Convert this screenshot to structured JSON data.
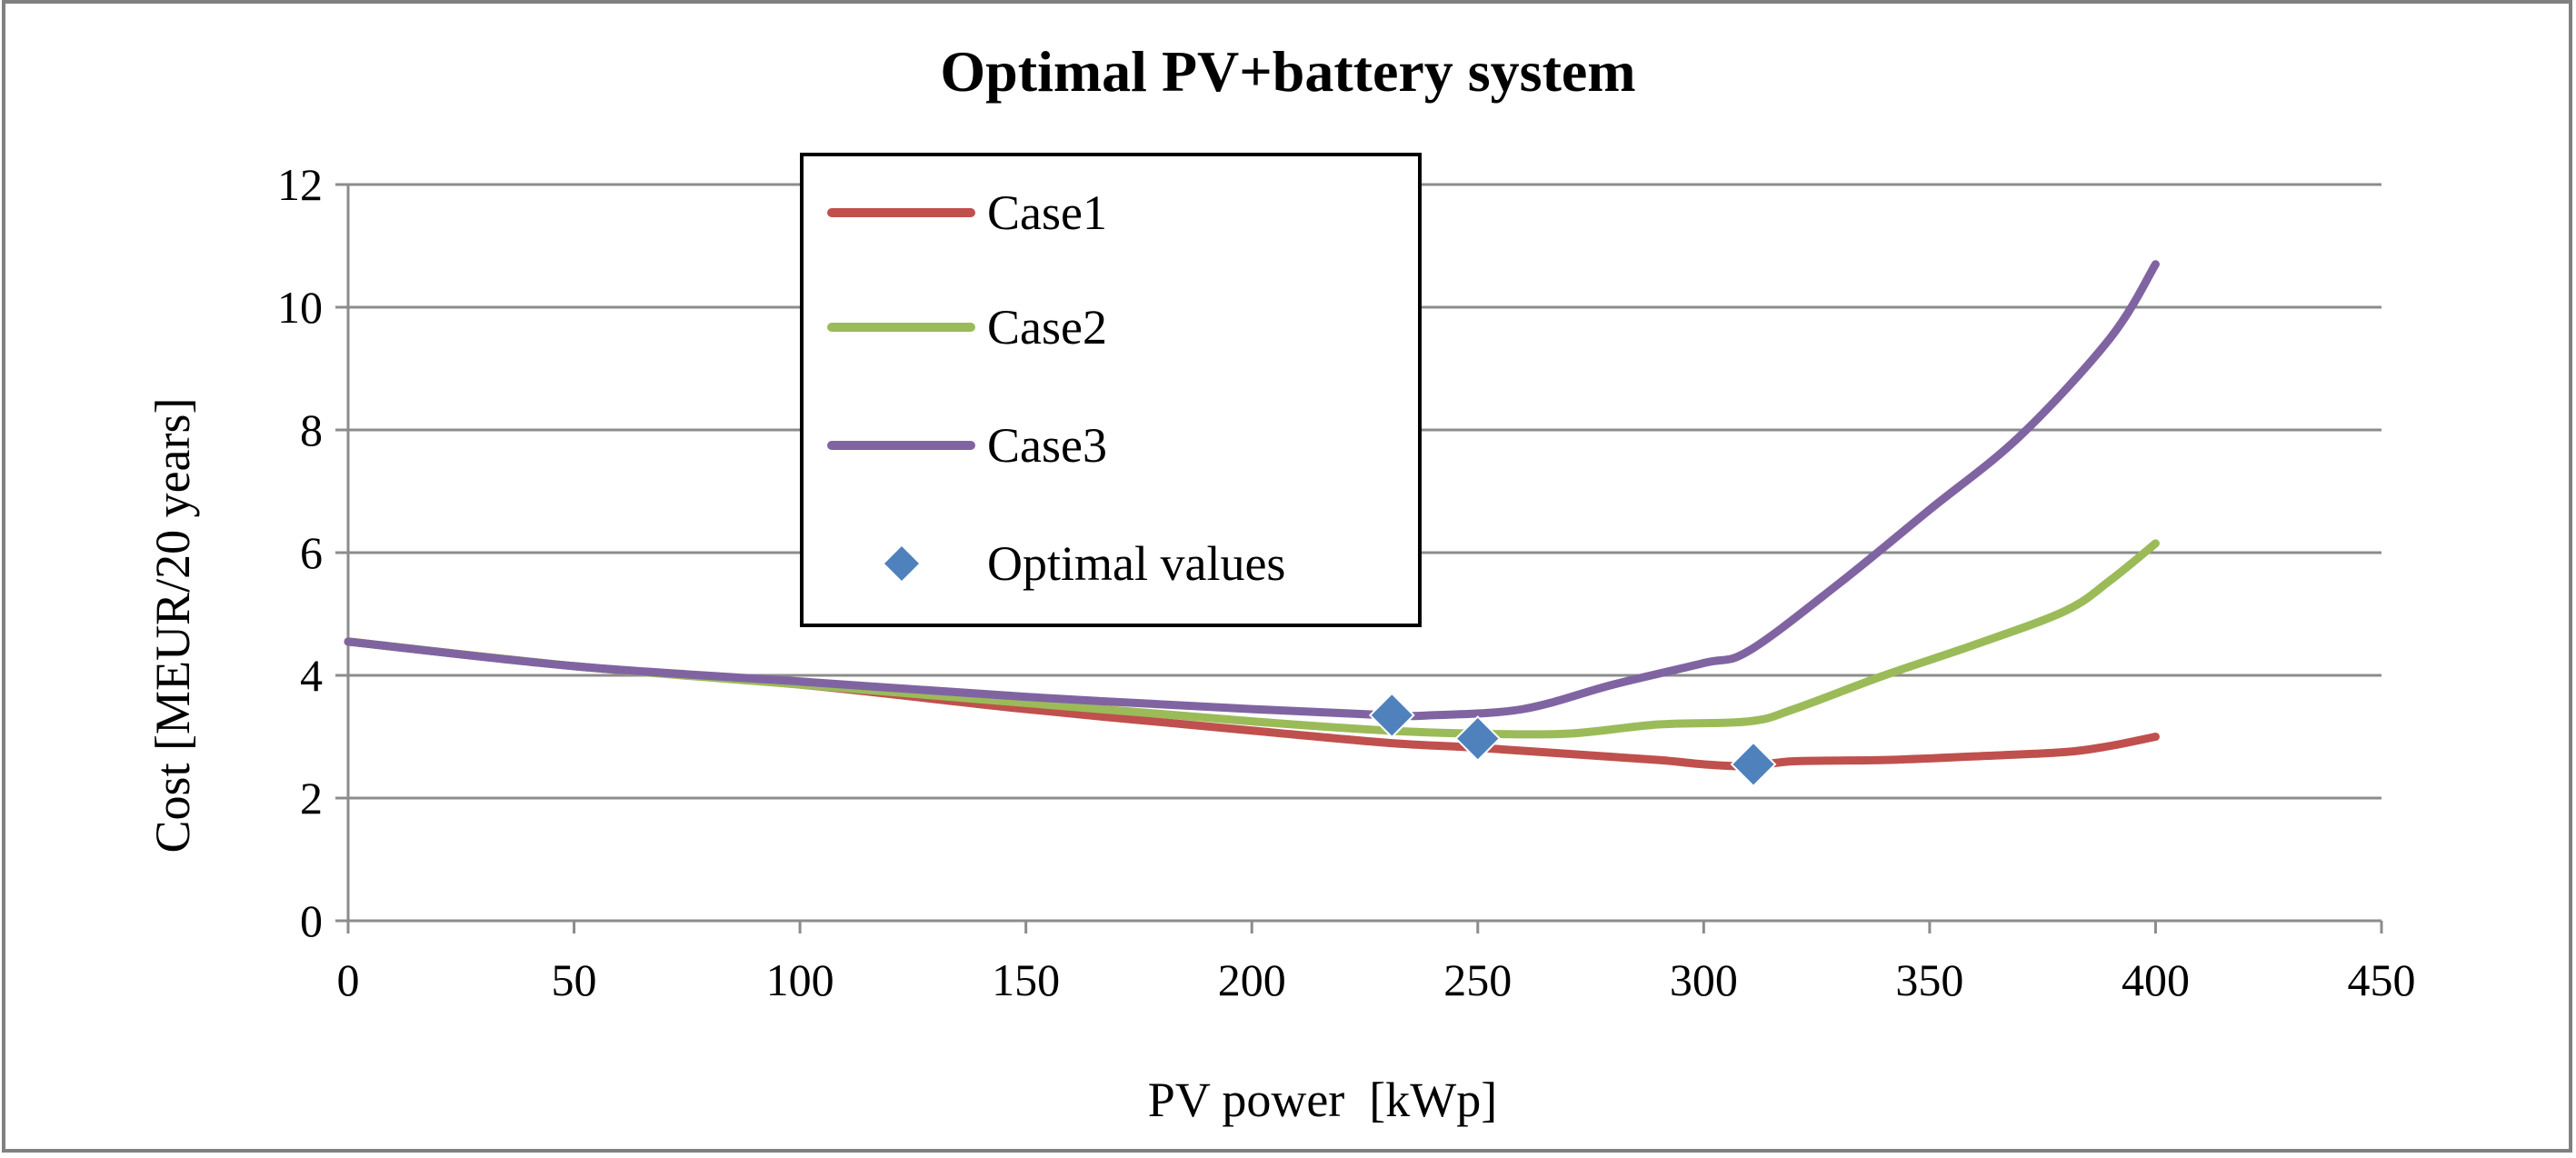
{
  "chart_data": {
    "type": "line",
    "title": "Optimal PV+battery system",
    "xlabel": "PV power  [kWp]",
    "ylabel": "Cost [MEUR/20 years]",
    "xlim": [
      0,
      450
    ],
    "ylim": [
      0,
      12
    ],
    "xticks": [
      0,
      50,
      100,
      150,
      200,
      250,
      300,
      350,
      400,
      450
    ],
    "yticks": [
      0,
      2,
      4,
      6,
      8,
      10,
      12
    ],
    "xtick_labels": [
      "0",
      "50",
      "100",
      "150",
      "200",
      "250",
      "300",
      "350",
      "400",
      "450"
    ],
    "ytick_labels": [
      "0",
      "2",
      "4",
      "6",
      "8",
      "10",
      "12"
    ],
    "grid": "horizontal",
    "legend_position": "top-center",
    "series": [
      {
        "name": "Case1",
        "kind": "line",
        "color": "#c0504d",
        "x": [
          0,
          50,
          100,
          150,
          200,
          230,
          250,
          270,
          290,
          300,
          310,
          320,
          340,
          360,
          380,
          390,
          400
        ],
        "y": [
          4.55,
          4.15,
          3.85,
          3.45,
          3.1,
          2.9,
          2.82,
          2.72,
          2.62,
          2.55,
          2.52,
          2.6,
          2.62,
          2.68,
          2.75,
          2.85,
          3.0
        ]
      },
      {
        "name": "Case2",
        "kind": "line",
        "color": "#9bbb59",
        "x": [
          0,
          50,
          100,
          150,
          200,
          230,
          250,
          270,
          290,
          310,
          320,
          340,
          360,
          380,
          390,
          400
        ],
        "y": [
          4.55,
          4.15,
          3.85,
          3.55,
          3.25,
          3.1,
          3.05,
          3.05,
          3.2,
          3.25,
          3.45,
          4.0,
          4.5,
          5.05,
          5.55,
          6.15
        ]
      },
      {
        "name": "Case3",
        "kind": "line",
        "color": "#8064a2",
        "x": [
          0,
          50,
          100,
          150,
          200,
          230,
          240,
          260,
          280,
          300,
          310,
          330,
          350,
          370,
          390,
          400
        ],
        "y": [
          4.55,
          4.15,
          3.9,
          3.65,
          3.45,
          3.35,
          3.35,
          3.45,
          3.85,
          4.2,
          4.4,
          5.5,
          6.7,
          7.9,
          9.5,
          10.7
        ]
      },
      {
        "name": "Optimal values",
        "kind": "markers",
        "color": "#4f81bd",
        "x": [
          231,
          250,
          311
        ],
        "y": [
          3.35,
          2.97,
          2.55
        ]
      }
    ]
  }
}
